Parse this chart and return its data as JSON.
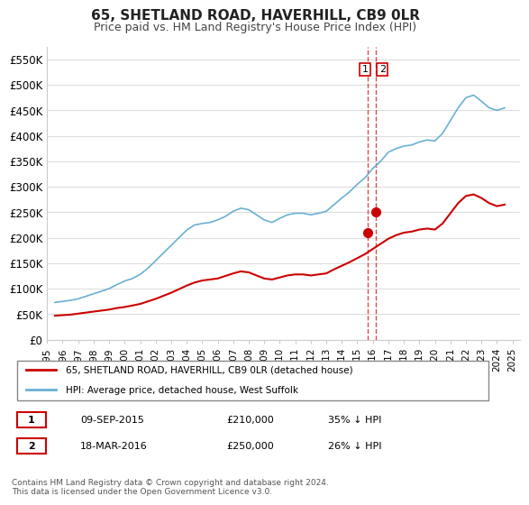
{
  "title": "65, SHETLAND ROAD, HAVERHILL, CB9 0LR",
  "subtitle": "Price paid vs. HM Land Registry's House Price Index (HPI)",
  "ylabel": "",
  "ylim": [
    0,
    575000
  ],
  "yticks": [
    0,
    50000,
    100000,
    150000,
    200000,
    250000,
    300000,
    350000,
    400000,
    450000,
    500000,
    550000
  ],
  "ytick_labels": [
    "£0",
    "£50K",
    "£100K",
    "£150K",
    "£200K",
    "£250K",
    "£300K",
    "£350K",
    "£400K",
    "£450K",
    "£500K",
    "£550K"
  ],
  "hpi_color": "#6ab0d4",
  "price_color": "#cc0000",
  "marker_color": "#cc0000",
  "vline_color": "#cc0000",
  "background_color": "#ffffff",
  "grid_color": "#dddddd",
  "sale1_year": 2015.69,
  "sale1_price": 210000,
  "sale2_year": 2016.21,
  "sale2_price": 250000,
  "legend_label_red": "65, SHETLAND ROAD, HAVERHILL, CB9 0LR (detached house)",
  "legend_label_blue": "HPI: Average price, detached house, West Suffolk",
  "table_row1": [
    "1",
    "09-SEP-2015",
    "£210,000",
    "35% ↓ HPI"
  ],
  "table_row2": [
    "2",
    "18-MAR-2016",
    "£250,000",
    "26% ↓ HPI"
  ],
  "footnote": "Contains HM Land Registry data © Crown copyright and database right 2024.\nThis data is licensed under the Open Government Licence v3.0.",
  "hpi_data": {
    "years": [
      1995.5,
      1996.0,
      1996.5,
      1997.0,
      1997.5,
      1998.0,
      1998.5,
      1999.0,
      1999.5,
      2000.0,
      2000.5,
      2001.0,
      2001.5,
      2002.0,
      2002.5,
      2003.0,
      2003.5,
      2004.0,
      2004.5,
      2005.0,
      2005.5,
      2006.0,
      2006.5,
      2007.0,
      2007.5,
      2008.0,
      2008.5,
      2009.0,
      2009.5,
      2010.0,
      2010.5,
      2011.0,
      2011.5,
      2012.0,
      2012.5,
      2013.0,
      2013.5,
      2014.0,
      2014.5,
      2015.0,
      2015.5,
      2016.0,
      2016.5,
      2017.0,
      2017.5,
      2018.0,
      2018.5,
      2019.0,
      2019.5,
      2020.0,
      2020.5,
      2021.0,
      2021.5,
      2022.0,
      2022.5,
      2023.0,
      2023.5,
      2024.0,
      2024.5
    ],
    "values": [
      73000,
      75000,
      77000,
      80000,
      85000,
      90000,
      95000,
      100000,
      108000,
      115000,
      120000,
      128000,
      140000,
      155000,
      170000,
      185000,
      200000,
      215000,
      225000,
      228000,
      230000,
      235000,
      242000,
      252000,
      258000,
      255000,
      245000,
      235000,
      230000,
      238000,
      245000,
      248000,
      248000,
      245000,
      248000,
      252000,
      265000,
      278000,
      290000,
      305000,
      318000,
      336000,
      350000,
      368000,
      375000,
      380000,
      382000,
      388000,
      392000,
      390000,
      405000,
      430000,
      455000,
      475000,
      480000,
      468000,
      455000,
      450000,
      455000
    ],
    "xlim_start": 1995.0,
    "xlim_end": 2025.5
  },
  "price_data": {
    "years": [
      1995.5,
      1996.0,
      1996.5,
      1997.0,
      1997.5,
      1998.0,
      1998.5,
      1999.0,
      1999.5,
      2000.0,
      2000.5,
      2001.0,
      2001.5,
      2002.0,
      2002.5,
      2003.0,
      2003.5,
      2004.0,
      2004.5,
      2005.0,
      2005.5,
      2006.0,
      2006.5,
      2007.0,
      2007.5,
      2008.0,
      2008.5,
      2009.0,
      2009.5,
      2010.0,
      2010.5,
      2011.0,
      2011.5,
      2012.0,
      2012.5,
      2013.0,
      2013.5,
      2014.0,
      2014.5,
      2015.0,
      2015.5,
      2016.0,
      2016.5,
      2017.0,
      2017.5,
      2018.0,
      2018.5,
      2019.0,
      2019.5,
      2020.0,
      2020.5,
      2021.0,
      2021.5,
      2022.0,
      2022.5,
      2023.0,
      2023.5,
      2024.0,
      2024.5
    ],
    "values": [
      47000,
      48000,
      49000,
      51000,
      53000,
      55000,
      57000,
      59000,
      62000,
      64000,
      67000,
      70000,
      75000,
      80000,
      86000,
      92000,
      99000,
      106000,
      112000,
      116000,
      118000,
      120000,
      125000,
      130000,
      134000,
      132000,
      126000,
      120000,
      118000,
      122000,
      126000,
      128000,
      128000,
      126000,
      128000,
      130000,
      138000,
      145000,
      152000,
      160000,
      168000,
      178000,
      188000,
      198000,
      205000,
      210000,
      212000,
      216000,
      218000,
      216000,
      228000,
      248000,
      268000,
      282000,
      285000,
      278000,
      268000,
      262000,
      265000
    ]
  }
}
